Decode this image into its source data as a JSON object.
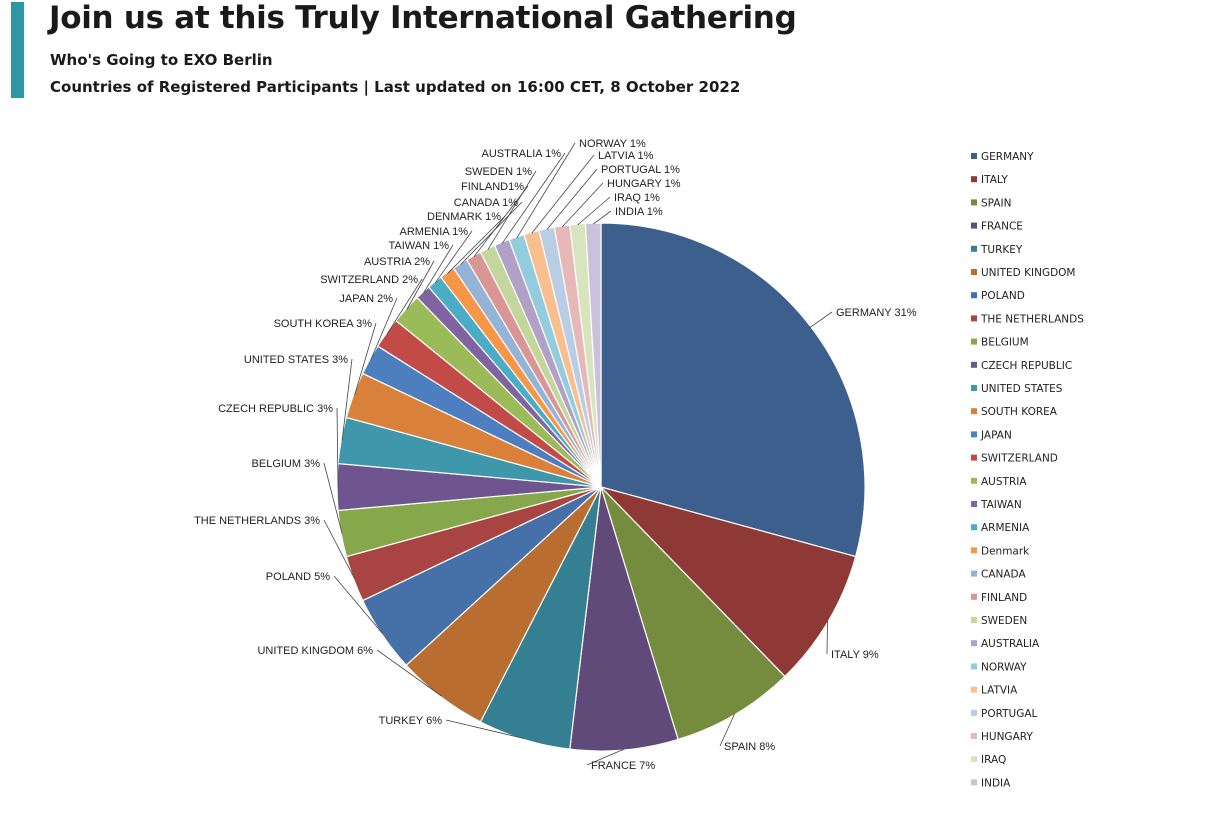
{
  "header": {
    "title": "Join us at this Truly International Gathering",
    "subtitle": "Who's Going to EXO Berlin",
    "updated": "Countries of Registered Participants | Last updated on 16:00 CET, 8 October 2022",
    "accent_color": "#2e97a3"
  },
  "chart_data": {
    "type": "pie",
    "title": "",
    "start_angle": "12 o'clock, clockwise",
    "legend_position": "right",
    "slices": [
      {
        "legend": "GERMANY",
        "label": "GERMANY 31%",
        "value": 31,
        "color": "#3c5f8d"
      },
      {
        "legend": "ITALY",
        "label": "ITALY 9%",
        "value": 9,
        "color": "#8f3937"
      },
      {
        "legend": "SPAIN",
        "label": "SPAIN 8%",
        "value": 8,
        "color": "#758c3f"
      },
      {
        "legend": "FRANCE",
        "label": "FRANCE 7%",
        "value": 7,
        "color": "#5f4a7a"
      },
      {
        "legend": "TURKEY",
        "label": "TURKEY 6%",
        "value": 6,
        "color": "#357f92"
      },
      {
        "legend": "UNITED KINGDOM",
        "label": "UNITED KINGDOM 6%",
        "value": 6,
        "color": "#b96d30"
      },
      {
        "legend": "POLAND",
        "label": "POLAND 5%",
        "value": 5,
        "color": "#4670a8"
      },
      {
        "legend": "THE NETHERLANDS",
        "label": "THE NETHERLANDS  3%",
        "value": 3,
        "color": "#a84442"
      },
      {
        "legend": "BELGIUM",
        "label": "BELGIUM 3%",
        "value": 3,
        "color": "#86a84a"
      },
      {
        "legend": "CZECH REPUBLIC",
        "label": "CZECH REPUBLIC 3%",
        "value": 3,
        "color": "#6e5590"
      },
      {
        "legend": "UNITED STATES",
        "label": "UNITED STATES 3%",
        "value": 3,
        "color": "#3f97ab"
      },
      {
        "legend": "SOUTH KOREA",
        "label": "SOUTH KOREA 3%",
        "value": 3,
        "color": "#d9813a"
      },
      {
        "legend": "JAPAN",
        "label": "JAPAN 2%",
        "value": 2,
        "color": "#4d7fc0"
      },
      {
        "legend": "SWITZERLAND",
        "label": "SWITZERLAND 2%",
        "value": 2,
        "color": "#c24a47"
      },
      {
        "legend": "AUSTRIA",
        "label": "AUSTRIA 2%",
        "value": 2,
        "color": "#9bbb59"
      },
      {
        "legend": "TAIWAN",
        "label": "TAIWAN 1%",
        "value": 1,
        "color": "#8064a2"
      },
      {
        "legend": "ARMENIA",
        "label": "ARMENIA 1%",
        "value": 1,
        "color": "#4bacc6"
      },
      {
        "legend": "Denmark",
        "label": "DENMARK 1%",
        "value": 1,
        "color": "#f79646"
      },
      {
        "legend": "CANADA",
        "label": "CANADA 1%",
        "value": 1,
        "color": "#95b3d7"
      },
      {
        "legend": "FINLAND",
        "label": "FINLAND1%",
        "value": 1,
        "color": "#d99694"
      },
      {
        "legend": "SWEDEN",
        "label": "SWEDEN 1%",
        "value": 1,
        "color": "#c3d69b"
      },
      {
        "legend": "AUSTRALIA",
        "label": "AUSTRALIA 1%",
        "value": 1,
        "color": "#b2a1c7"
      },
      {
        "legend": "NORWAY",
        "label": "NORWAY 1%",
        "value": 1,
        "color": "#93cddd"
      },
      {
        "legend": "LATVIA",
        "label": "LATVIA 1%",
        "value": 1,
        "color": "#fabf8f"
      },
      {
        "legend": "PORTUGAL",
        "label": "PORTUGAL 1%",
        "value": 1,
        "color": "#b9cde5"
      },
      {
        "legend": "HUNGARY",
        "label": "HUNGARY 1%",
        "value": 1,
        "color": "#e6b9b8"
      },
      {
        "legend": "IRAQ",
        "label": "IRAQ 1%",
        "value": 1,
        "color": "#d7e4bd"
      },
      {
        "legend": "INDIA",
        "label": "INDIA 1%",
        "value": 1,
        "color": "#ccc1da"
      }
    ]
  }
}
